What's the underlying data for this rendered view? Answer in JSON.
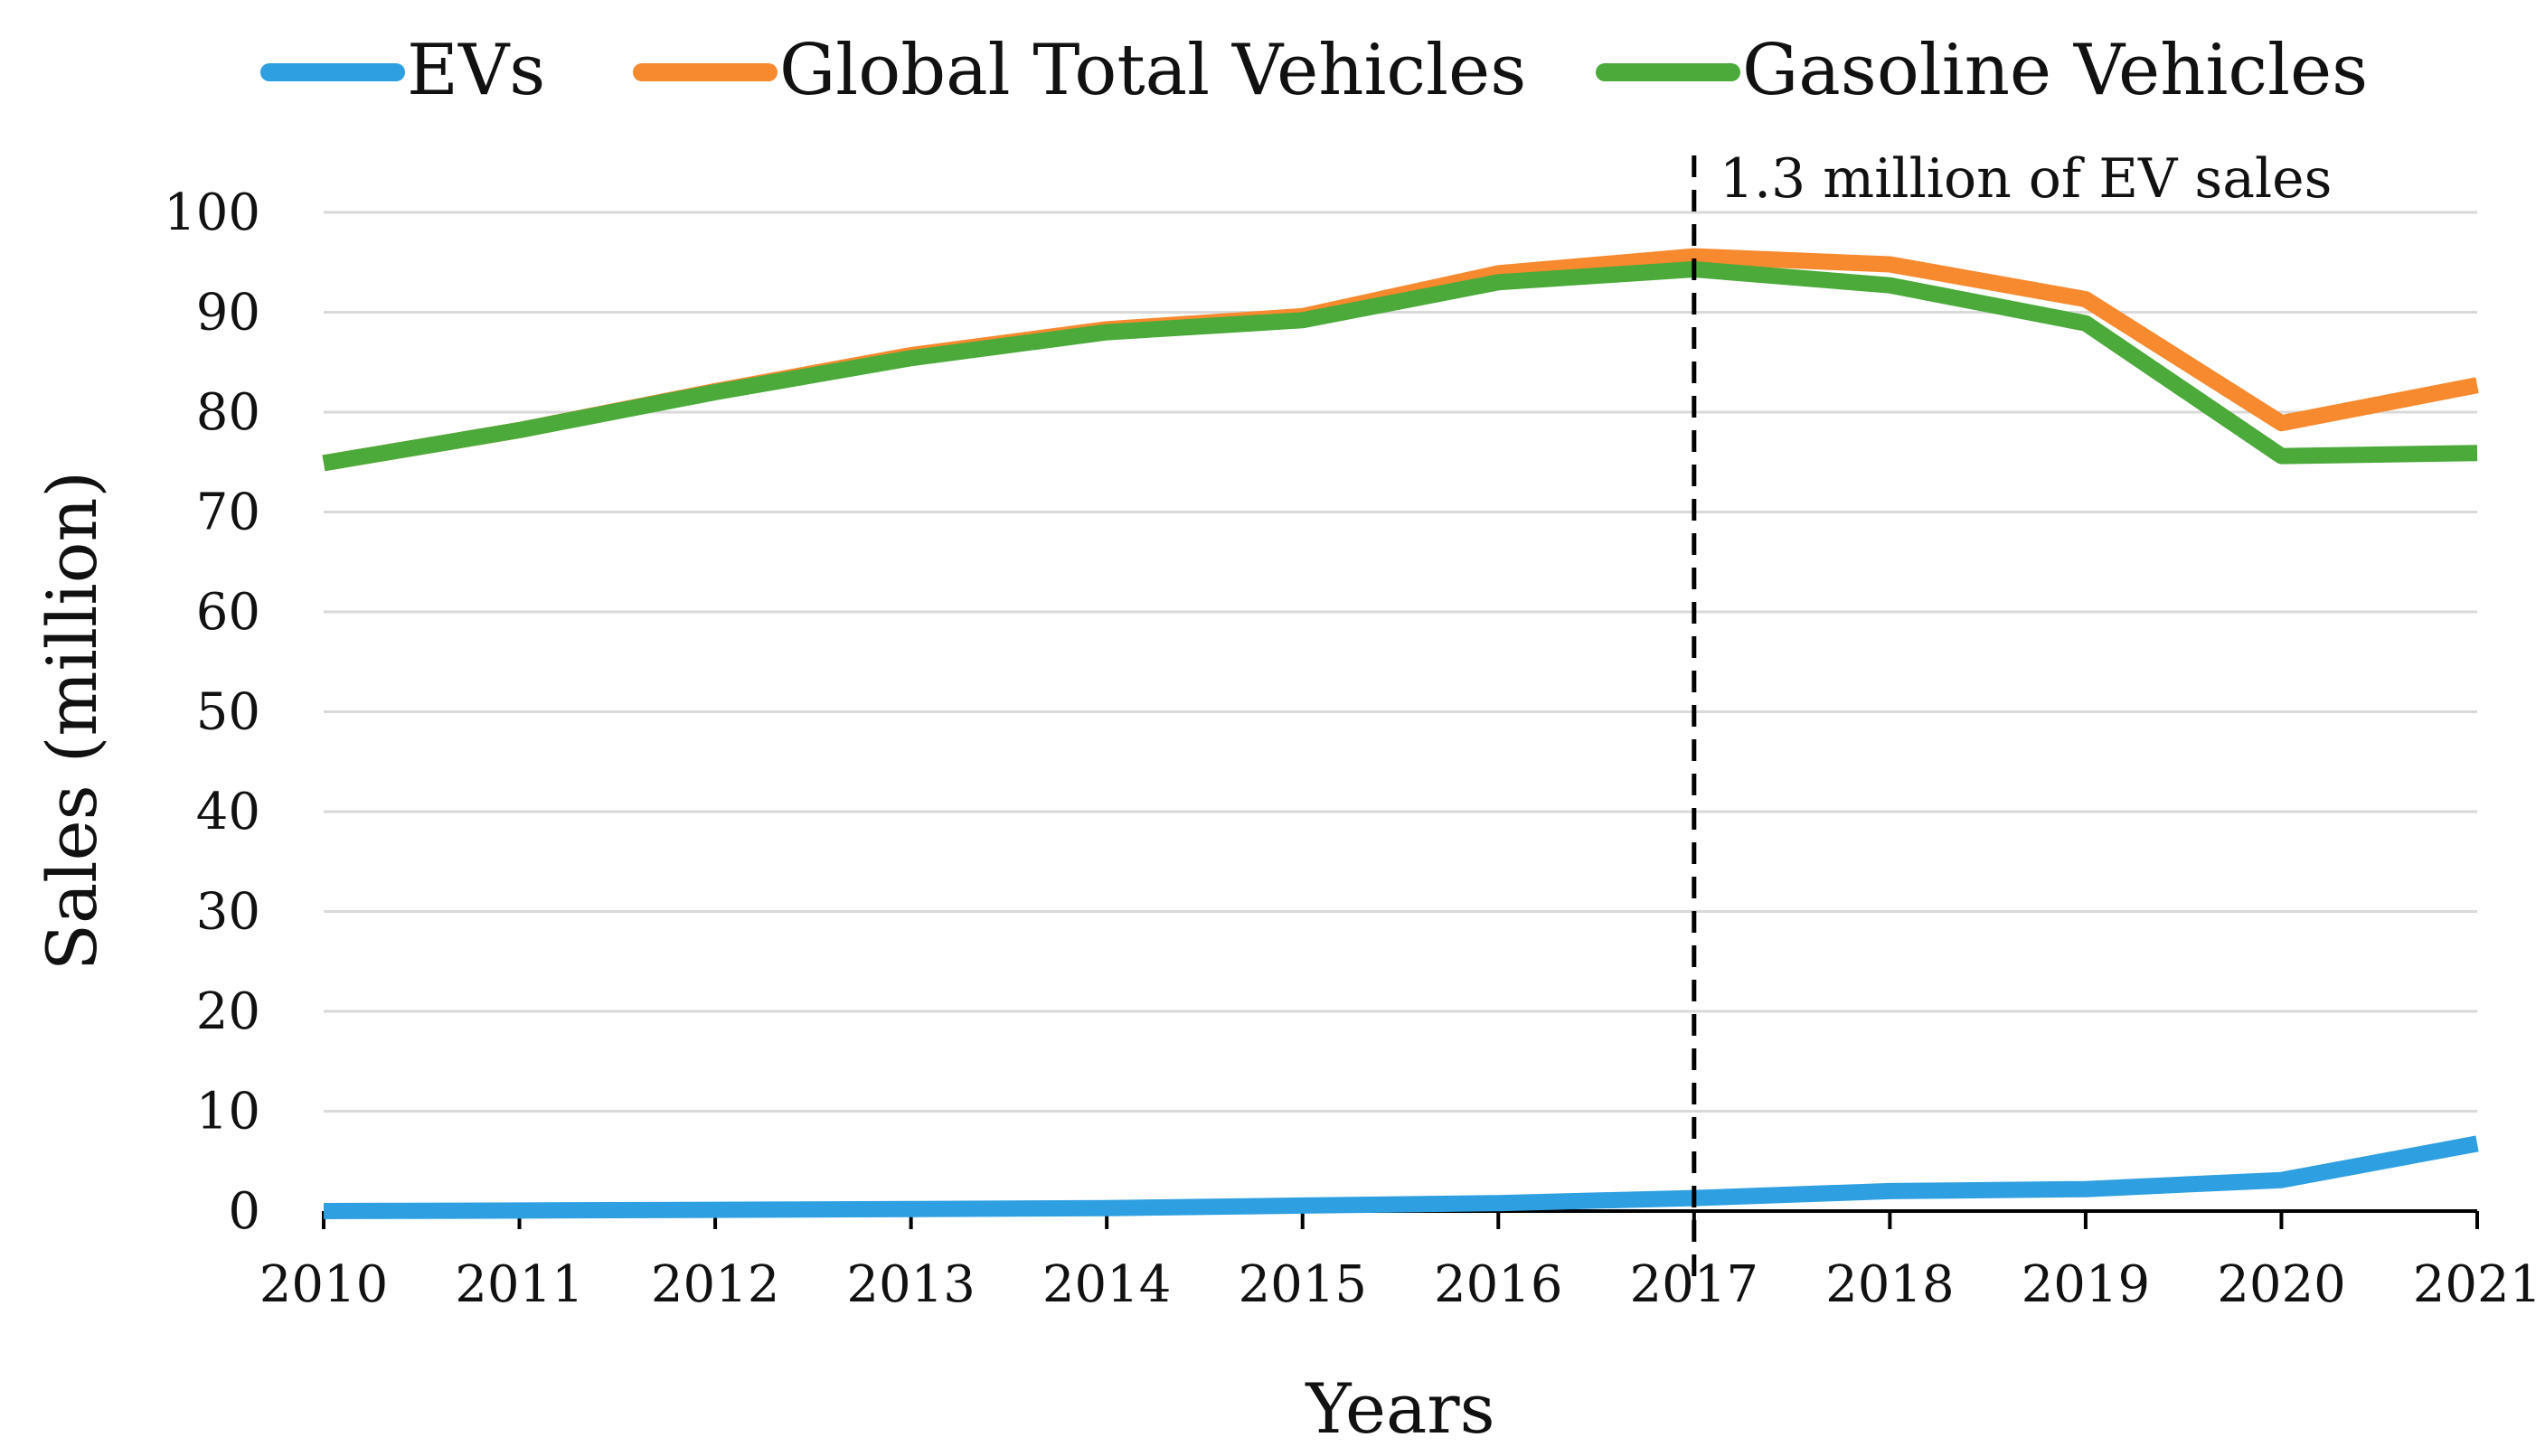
{
  "chart_data": {
    "type": "line",
    "title": "",
    "xlabel": "Years",
    "ylabel": "Sales (million)",
    "x": [
      2010,
      2011,
      2012,
      2013,
      2014,
      2015,
      2016,
      2017,
      2018,
      2019,
      2020,
      2021
    ],
    "ylim": [
      0,
      100
    ],
    "yticks": [
      0,
      10,
      20,
      30,
      40,
      50,
      60,
      70,
      80,
      90,
      100
    ],
    "grid": true,
    "legend_position": "top",
    "series": [
      {
        "name": "EVs",
        "color": "#2E9FE0",
        "values": [
          0.0,
          0.05,
          0.13,
          0.2,
          0.3,
          0.55,
          0.8,
          1.3,
          2.0,
          2.2,
          3.1,
          6.75
        ]
      },
      {
        "name": "Global Total Vehicles",
        "color": "#F7892E",
        "values": [
          74.9,
          78.2,
          82.1,
          85.7,
          88.3,
          89.6,
          93.9,
          95.6,
          94.8,
          91.3,
          78.9,
          82.7
        ]
      },
      {
        "name": "Gasoline Vehicles",
        "color": "#4BAA3A",
        "values": [
          74.9,
          78.2,
          82.0,
          85.4,
          88.0,
          89.2,
          93.0,
          94.3,
          92.7,
          88.9,
          75.6,
          75.9
        ]
      }
    ],
    "annotations": [
      {
        "x": 2017,
        "text": "1.3 million of EV sales",
        "style": "dashed-vertical-line"
      }
    ]
  }
}
